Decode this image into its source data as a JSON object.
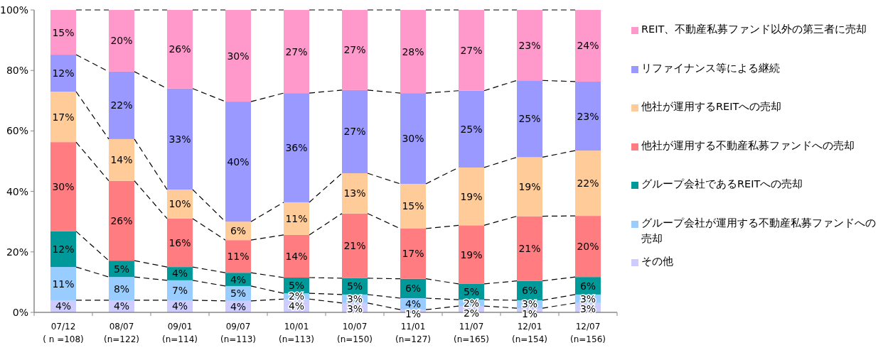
{
  "chart_data": {
    "type": "bar",
    "stacked": true,
    "categories": [
      "07/12\n( n =108)",
      "08/07\n(n=122)",
      "09/01\n(n=114)",
      "09/07\n(n=113)",
      "10/01\n(n=113)",
      "10/07\n(n=150)",
      "11/01\n(n=127)",
      "11/07\n(n=165)",
      "12/01\n(n=154)",
      "12/07\n(n=156)"
    ],
    "ylim": [
      0,
      100
    ],
    "yticks": [
      {
        "value": 0,
        "label": "0%"
      },
      {
        "value": 20,
        "label": "20%"
      },
      {
        "value": 40,
        "label": "40%"
      },
      {
        "value": 60,
        "label": "60%"
      },
      {
        "value": 80,
        "label": "80%"
      },
      {
        "value": 100,
        "label": "100%"
      }
    ],
    "legend": "right",
    "series": [
      {
        "name": "その他",
        "color": "#ccccff",
        "values": [
          4,
          4,
          4,
          3.8,
          4.4,
          3.1,
          0.9,
          2.1,
          1.4,
          3.1
        ],
        "value_labels": [
          "4%",
          "4%",
          "4%",
          "4%",
          "4%",
          "3%",
          "1%",
          "2%",
          "1%",
          "3%"
        ]
      },
      {
        "name": "グループ会社が運用する不動産私募ファンドへの売却",
        "color": "#99ccff",
        "values": [
          11,
          7.7,
          6.6,
          4.9,
          1.9,
          2.8,
          3.8,
          2.1,
          2.6,
          2.8
        ],
        "value_labels": [
          "11%",
          "8%",
          "7%",
          "5%",
          "2%",
          "3%",
          "4%",
          "2%",
          "3%",
          "3%"
        ]
      },
      {
        "name": "グループ会社であるREITへの売却",
        "color": "#009999",
        "values": [
          11.8,
          5.4,
          4.4,
          4.4,
          5.2,
          5.4,
          6.4,
          5.2,
          6.4,
          5.8
        ],
        "value_labels": [
          "12%",
          "5%",
          "4%",
          "4%",
          "5%",
          "5%",
          "6%",
          "5%",
          "6%",
          "6%"
        ]
      },
      {
        "name": "他社が運用する不動産私募ファンドへの売却",
        "color": "#ff7c80",
        "values": [
          29.5,
          26.4,
          16,
          10.8,
          14.1,
          21.4,
          16.6,
          19.4,
          21.4,
          20.2
        ],
        "value_labels": [
          "30%",
          "26%",
          "16%",
          "11%",
          "14%",
          "21%",
          "17%",
          "19%",
          "21%",
          "20%"
        ]
      },
      {
        "name": "他社が運用するREITへの売却",
        "color": "#ffcc99",
        "values": [
          16.7,
          13.8,
          9.6,
          6.1,
          10.8,
          13.3,
          14.8,
          19.1,
          19.5,
          21.6
        ],
        "value_labels": [
          "17%",
          "14%",
          "10%",
          "6%",
          "11%",
          "13%",
          "15%",
          "19%",
          "19%",
          "22%"
        ]
      },
      {
        "name": "リファイナンス等による継続",
        "color": "#9999ff",
        "values": [
          12.2,
          22.3,
          33.4,
          39.7,
          36.1,
          27.5,
          30,
          25.4,
          25.4,
          22.8
        ],
        "value_labels": [
          "12%",
          "22%",
          "33%",
          "40%",
          "36%",
          "27%",
          "30%",
          "25%",
          "25%",
          "23%"
        ]
      },
      {
        "name": "REIT、不動産私募ファンド以外の第三者に売却",
        "color": "#ff99cc",
        "values": [
          14.8,
          20.4,
          26,
          30.3,
          27.5,
          26.5,
          27.5,
          26.7,
          23.3,
          23.7
        ],
        "value_labels": [
          "15%",
          "20%",
          "26%",
          "30%",
          "27%",
          "27%",
          "28%",
          "27%",
          "23%",
          "24%"
        ]
      }
    ]
  }
}
